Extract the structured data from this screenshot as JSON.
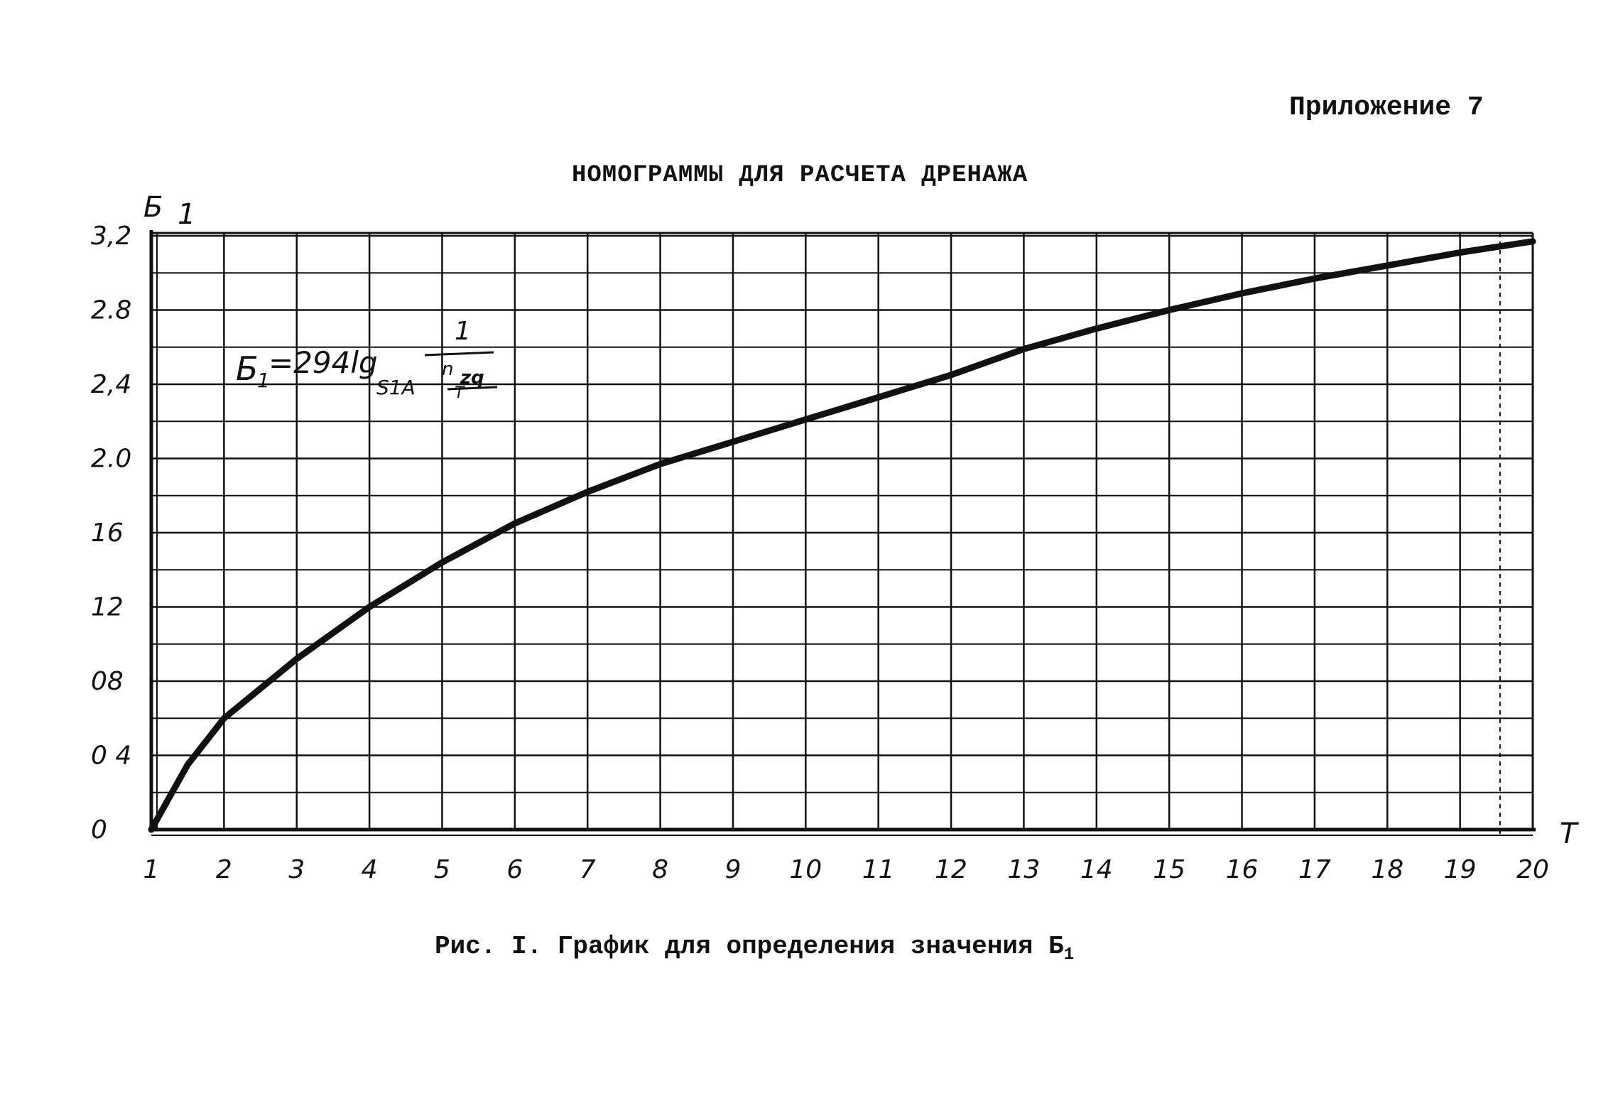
{
  "header": {
    "appendix": "Приложение 7",
    "title": "НОМОГРАММЫ ДЛЯ РАСЧЕТА ДРЕНАЖА"
  },
  "caption": {
    "text": "Рис. I. График для определения значения Б",
    "subscript": "1"
  },
  "formula": {
    "lhs": "Б",
    "lhs_sub": "1",
    "rhs": "=294lg",
    "base": "S1A",
    "numerator": "1",
    "denominator_top": "n",
    "denominator_mid": "zq",
    "denominator_bottom": "Т"
  },
  "axes": {
    "y_name": "Б",
    "y_name_sub": "1",
    "x_name": "Т",
    "y_tick_labels": [
      "0",
      "0 4",
      "08",
      "12",
      "16",
      "2.0",
      "2,4",
      "2.8",
      "3,2"
    ],
    "x_tick_labels": [
      "1",
      "2",
      "3",
      "4",
      "5",
      "6",
      "7",
      "8",
      "9",
      "10",
      "11",
      "12",
      "13",
      "14",
      "15",
      "16",
      "17",
      "18",
      "19",
      "20"
    ]
  },
  "chart_data": {
    "type": "line",
    "xlabel": "Т",
    "ylabel": "Б1",
    "xlim": [
      1,
      20
    ],
    "ylim": [
      0,
      3.3
    ],
    "grid": true,
    "y_ticks": [
      0,
      0.4,
      0.8,
      1.2,
      1.6,
      2.0,
      2.4,
      2.8,
      3.2
    ],
    "x_ticks": [
      1,
      2,
      3,
      4,
      5,
      6,
      7,
      8,
      9,
      10,
      11,
      12,
      13,
      14,
      15,
      16,
      17,
      18,
      19,
      20
    ],
    "series": [
      {
        "x": [
          1,
          1.5,
          2,
          3,
          4,
          5,
          6,
          7,
          8,
          9,
          10,
          11,
          12,
          13,
          14,
          15,
          16,
          17,
          18,
          19,
          20
        ],
        "y": [
          0,
          0.35,
          0.6,
          0.92,
          1.2,
          1.44,
          1.65,
          1.82,
          1.97,
          2.09,
          2.21,
          2.33,
          2.45,
          2.59,
          2.7,
          2.8,
          2.89,
          2.97,
          3.04,
          3.11,
          3.17
        ],
        "color": "#111111"
      }
    ]
  }
}
